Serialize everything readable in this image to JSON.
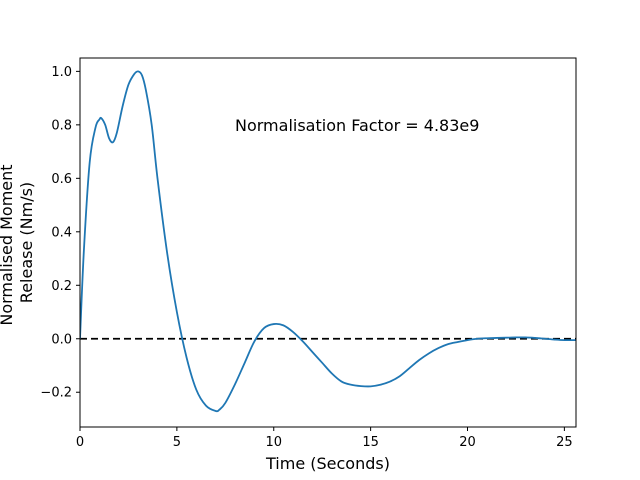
{
  "chart_data": {
    "type": "line",
    "xlabel": "Time (Seconds)",
    "ylabel_lines": [
      "Normalised Moment",
      "Release (Nm/s)"
    ],
    "annotation": "Normalisation Factor = 4.83e9",
    "xlim": [
      0,
      25.6
    ],
    "ylim": [
      -0.33,
      1.05
    ],
    "xticks": [
      0,
      5,
      10,
      15,
      20,
      25
    ],
    "yticks": [
      -0.2,
      0.0,
      0.2,
      0.4,
      0.6,
      0.8,
      1.0
    ],
    "xtick_labels": [
      "0",
      "5",
      "10",
      "15",
      "20",
      "25"
    ],
    "ytick_labels": [
      "−0.2",
      "0.0",
      "0.2",
      "0.4",
      "0.6",
      "0.8",
      "1.0"
    ],
    "reference_line": {
      "y": 0,
      "style": "dashed",
      "color": "#000000"
    },
    "grid": false,
    "series": [
      {
        "color": "#1f77b4",
        "x": [
          0,
          0.2,
          0.5,
          0.8,
          1.0,
          1.1,
          1.3,
          1.5,
          1.7,
          1.9,
          2.2,
          2.5,
          2.8,
          3.0,
          3.2,
          3.4,
          3.7,
          4.0,
          4.5,
          5.0,
          5.5,
          6.0,
          6.5,
          7.0,
          7.2,
          7.5,
          8.0,
          8.5,
          9.0,
          9.5,
          10.0,
          10.5,
          11.0,
          11.5,
          12.0,
          12.5,
          13.0,
          13.5,
          14.0,
          14.5,
          15.0,
          15.5,
          16.0,
          16.5,
          17.0,
          17.5,
          18.0,
          18.5,
          19.0,
          19.5,
          20.0,
          20.5,
          21.0,
          21.5,
          22.0,
          22.5,
          23.0,
          23.5,
          24.0,
          24.5,
          25.0,
          25.6
        ],
        "y": [
          0,
          0.33,
          0.66,
          0.79,
          0.82,
          0.825,
          0.8,
          0.75,
          0.735,
          0.77,
          0.87,
          0.95,
          0.99,
          1.0,
          0.985,
          0.93,
          0.8,
          0.6,
          0.32,
          0.1,
          -0.07,
          -0.19,
          -0.25,
          -0.27,
          -0.265,
          -0.24,
          -0.17,
          -0.09,
          -0.01,
          0.04,
          0.055,
          0.05,
          0.025,
          -0.01,
          -0.05,
          -0.09,
          -0.13,
          -0.16,
          -0.172,
          -0.177,
          -0.178,
          -0.172,
          -0.16,
          -0.14,
          -0.11,
          -0.08,
          -0.055,
          -0.035,
          -0.02,
          -0.012,
          -0.005,
          0.0,
          0.002,
          0.003,
          0.004,
          0.005,
          0.005,
          0.003,
          0.0,
          -0.003,
          -0.005,
          -0.005
        ]
      }
    ]
  }
}
